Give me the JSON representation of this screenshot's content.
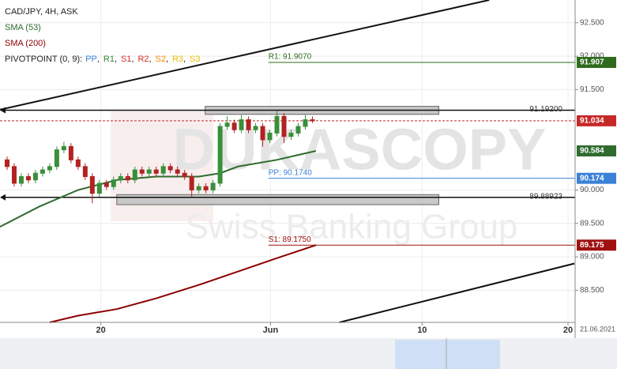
{
  "chart_data": {
    "type": "candlestick",
    "title": "CAD/JPY, 4H, ASK",
    "x": [
      2,
      4,
      6,
      8,
      10,
      12,
      14,
      16,
      18,
      20,
      22,
      24,
      26,
      28,
      30,
      32,
      34,
      36,
      38,
      40,
      42,
      44,
      46,
      48,
      50,
      52,
      54,
      56,
      58,
      60,
      62,
      64,
      66,
      68,
      70,
      72,
      74,
      76,
      78,
      80,
      82,
      84,
      86,
      88
    ],
    "open": [
      90.45,
      90.35,
      90.1,
      90.2,
      90.15,
      90.25,
      90.3,
      90.35,
      90.6,
      90.65,
      90.45,
      90.35,
      90.2,
      89.95,
      90.1,
      90.05,
      90.15,
      90.2,
      90.15,
      90.3,
      90.25,
      90.3,
      90.25,
      90.35,
      90.3,
      90.25,
      90.2,
      90.0,
      90.05,
      90.0,
      90.1,
      90.95,
      91.0,
      90.9,
      91.05,
      90.9,
      90.95,
      90.75,
      90.85,
      91.1,
      90.8,
      90.85,
      90.95,
      91.05
    ],
    "high": [
      90.5,
      90.4,
      90.25,
      90.25,
      90.3,
      90.35,
      90.4,
      90.65,
      90.72,
      90.7,
      90.5,
      90.4,
      90.25,
      90.15,
      90.15,
      90.2,
      90.25,
      90.25,
      90.35,
      90.35,
      90.35,
      90.35,
      90.4,
      90.4,
      90.35,
      90.3,
      90.25,
      90.1,
      90.1,
      90.15,
      91.0,
      91.1,
      91.05,
      91.12,
      91.1,
      91.0,
      91.0,
      90.9,
      91.18,
      91.15,
      90.9,
      91.0,
      91.12,
      91.1
    ],
    "low": [
      90.3,
      90.05,
      90.05,
      90.1,
      90.1,
      90.2,
      90.25,
      90.3,
      90.55,
      90.4,
      90.3,
      90.15,
      89.8,
      89.9,
      90.0,
      90.0,
      90.1,
      90.1,
      90.1,
      90.2,
      90.2,
      90.2,
      90.2,
      90.25,
      90.2,
      90.15,
      89.9,
      89.95,
      89.95,
      89.95,
      90.05,
      90.9,
      90.85,
      90.85,
      90.85,
      90.85,
      90.65,
      90.7,
      90.8,
      90.7,
      90.75,
      90.8,
      90.9,
      91.0
    ],
    "close": [
      90.35,
      90.1,
      90.2,
      90.15,
      90.25,
      90.3,
      90.35,
      90.6,
      90.65,
      90.45,
      90.35,
      90.2,
      89.95,
      90.1,
      90.05,
      90.15,
      90.2,
      90.15,
      90.3,
      90.25,
      90.3,
      90.25,
      90.35,
      90.3,
      90.25,
      90.2,
      90.0,
      90.05,
      90.0,
      90.1,
      90.95,
      91.0,
      90.9,
      91.05,
      90.9,
      90.95,
      90.75,
      90.85,
      91.1,
      90.8,
      90.85,
      90.95,
      91.05,
      91.034
    ],
    "up_color": "#3a8f3a",
    "down_color": "#b22222",
    "xlim": [
      0,
      162
    ],
    "ylim": [
      88.02,
      92.84
    ],
    "xticks": [
      {
        "value": 28.4,
        "label": "20"
      },
      {
        "value": 76.2,
        "label": "Jun"
      },
      {
        "value": 118.9,
        "label": "10"
      },
      {
        "value": 160,
        "label": "20"
      }
    ],
    "yticks": [
      {
        "value": 88.5,
        "label": "88.500"
      },
      {
        "value": 89.0,
        "label": "89.000"
      },
      {
        "value": 89.5,
        "label": "89.500"
      },
      {
        "value": 90.0,
        "label": "90.000"
      },
      {
        "value": 91.5,
        "label": "91.500"
      },
      {
        "value": 92.0,
        "label": "92.000"
      },
      {
        "value": 92.5,
        "label": "92.500"
      }
    ],
    "grid": true,
    "date_label": "21.06.2021",
    "lines": [
      {
        "name": "SMA (53)",
        "color": "#2f6b2f",
        "x": [
          0,
          11,
          22,
          33,
          44,
          56,
          62,
          67,
          78,
          89
        ],
        "values": [
          89.45,
          89.75,
          90.0,
          90.15,
          90.2,
          90.2,
          90.25,
          90.35,
          90.45,
          90.584
        ]
      },
      {
        "name": "SMA (200)",
        "color": "#8b0000",
        "x": [
          14,
          22,
          33,
          44,
          56,
          67,
          78,
          89
        ],
        "values": [
          88.02,
          88.12,
          88.22,
          88.38,
          88.58,
          88.78,
          88.98,
          89.175
        ]
      }
    ],
    "pivot_legend": {
      "label": "PIVOTPOINT (0, 9):",
      "items": [
        {
          "name": "PP",
          "color": "#3b82d6"
        },
        {
          "name": "R1",
          "color": "#2e8b2e"
        },
        {
          "name": "S1",
          "color": "#d32f2f"
        },
        {
          "name": "R2",
          "color": "#d32f2f"
        },
        {
          "name": "S2",
          "color": "#f08c00"
        },
        {
          "name": "R3",
          "color": "#e8c000"
        },
        {
          "name": "S3",
          "color": "#e8c000"
        }
      ]
    },
    "pivot_start": 75.6,
    "pivots": [
      {
        "value": 91.907,
        "label": "R1: 91.9070",
        "color": "#2e6b1e"
      },
      {
        "value": 90.174,
        "label": "PP: 90.1740",
        "color": "#3b82d6"
      },
      {
        "value": 89.175,
        "label": "S1: 89.1750",
        "color": "#a01010"
      }
    ],
    "levels": [
      {
        "value": 91.192,
        "label": "91.19200"
      },
      {
        "value": 89.88923,
        "label": "89.88923"
      }
    ],
    "zones": [
      {
        "x": [
          57.8,
          123.6
        ],
        "y": [
          91.13,
          91.25
        ]
      },
      {
        "x": [
          32.9,
          123.6
        ],
        "y": [
          89.78,
          89.93
        ]
      }
    ],
    "trendlines": [
      {
        "x": [
          0,
          137.8
        ],
        "y": [
          91.2,
          92.84
        ]
      },
      {
        "x": [
          95.6,
          161.8
        ],
        "y": [
          88.02,
          88.9
        ]
      }
    ],
    "last_price": 91.034,
    "last_price_color": "#c62828",
    "watermark": [
      "DUKASCOPY",
      "Swiss Banking Group"
    ]
  }
}
